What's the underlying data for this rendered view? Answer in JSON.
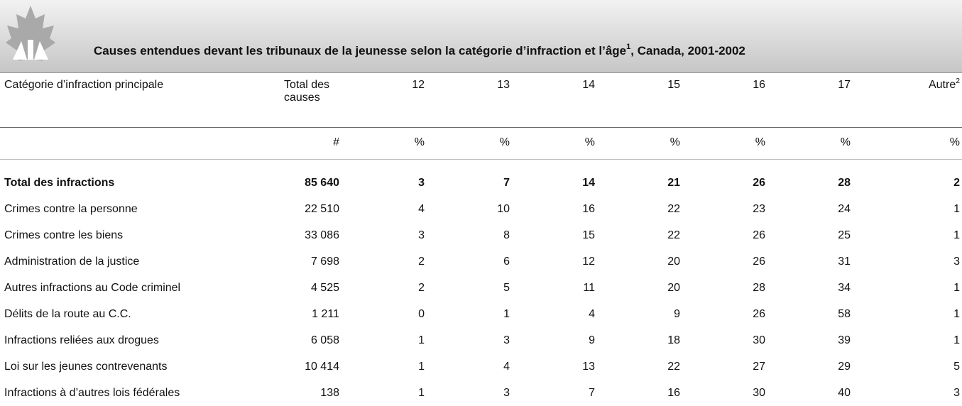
{
  "header": {
    "title": "Causes entendues devant les tribunaux de la jeunesse selon la catégorie d’infraction et l’âge",
    "title_sup": "1",
    "title_suffix": ", Canada, 2001-2002"
  },
  "table": {
    "columns": [
      "Catégorie d’infraction principale",
      "Total des causes",
      "12",
      "13",
      "14",
      "15",
      "16",
      "17",
      "Autre"
    ],
    "autre_sup": "2",
    "units": [
      "#",
      "%",
      "%",
      "%",
      "%",
      "%",
      "%",
      "%"
    ],
    "rows": [
      [
        "Total des infractions",
        "85 640",
        "3",
        "7",
        "14",
        "21",
        "26",
        "28",
        "2"
      ],
      [
        "Crimes contre la personne",
        "22 510",
        "4",
        "10",
        "16",
        "22",
        "23",
        "24",
        "1"
      ],
      [
        "Crimes contre les biens",
        "33 086",
        "3",
        "8",
        "15",
        "22",
        "26",
        "25",
        "1"
      ],
      [
        "Administration de la justice",
        "7 698",
        "2",
        "6",
        "12",
        "20",
        "26",
        "31",
        "3"
      ],
      [
        "Autres infractions au Code criminel",
        "4 525",
        "2",
        "5",
        "11",
        "20",
        "28",
        "34",
        "1"
      ],
      [
        "Délits de la route au C.C.",
        "1 211",
        "0",
        "1",
        "4",
        "9",
        "26",
        "58",
        "1"
      ],
      [
        "Infractions reliées aux drogues",
        "6 058",
        "1",
        "3",
        "9",
        "18",
        "30",
        "39",
        "1"
      ],
      [
        "Loi sur les jeunes contrevenants",
        "10 414",
        "1",
        "4",
        "13",
        "22",
        "27",
        "29",
        "5"
      ],
      [
        "Infractions à d’autres lois fédérales",
        "138",
        "1",
        "3",
        "7",
        "16",
        "30",
        "40",
        "3"
      ]
    ]
  }
}
